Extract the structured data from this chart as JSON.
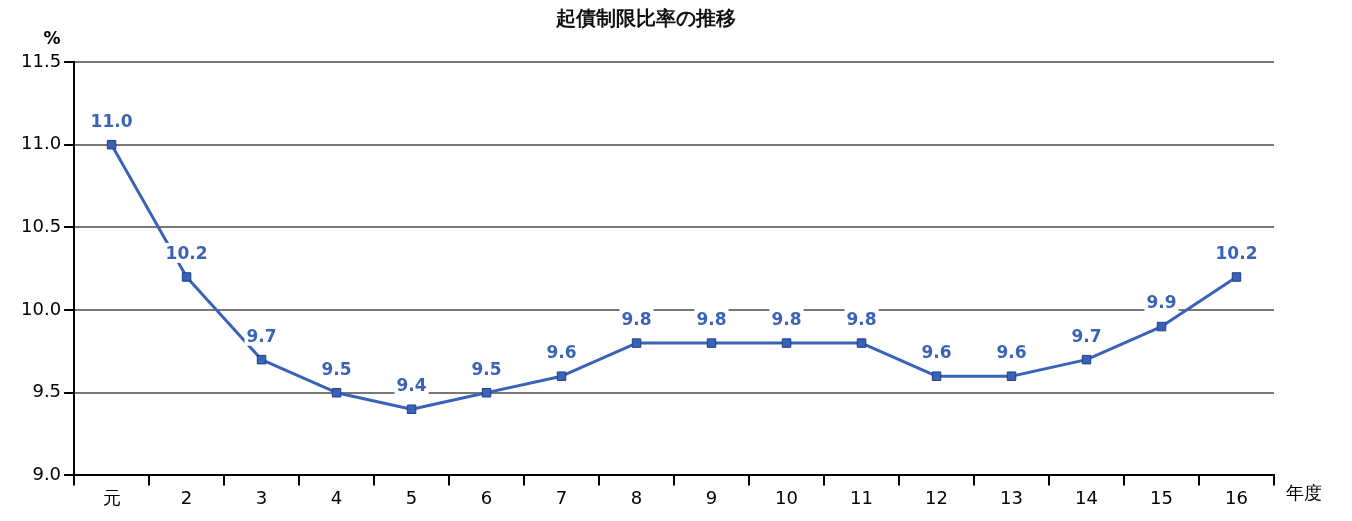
{
  "chart_data": {
    "type": "line",
    "title": "起債制限比率の推移",
    "xlabel": "年度",
    "ylabel": "%",
    "categories": [
      "元",
      "2",
      "3",
      "4",
      "5",
      "6",
      "7",
      "8",
      "9",
      "10",
      "11",
      "12",
      "13",
      "14",
      "15",
      "16"
    ],
    "series": [
      {
        "color": "#3a63b8",
        "values": [
          11.0,
          10.2,
          9.7,
          9.5,
          9.4,
          9.5,
          9.6,
          9.8,
          9.8,
          9.8,
          9.8,
          9.6,
          9.6,
          9.7,
          9.9,
          10.2
        ],
        "value_labels": [
          "11.0",
          "10.2",
          "9.7",
          "9.5",
          "9.4",
          "9.5",
          "9.6",
          "9.8",
          "9.8",
          "9.8",
          "9.8",
          "9.6",
          "9.6",
          "9.7",
          "9.9",
          "10.2"
        ]
      }
    ],
    "ylim": [
      9.0,
      11.5
    ],
    "yticks": [
      {
        "value": 9.0,
        "label": "9.0"
      },
      {
        "value": 9.5,
        "label": "9.5"
      },
      {
        "value": 10.0,
        "label": "10.0"
      },
      {
        "value": 10.5,
        "label": "10.5"
      },
      {
        "value": 11.0,
        "label": "11.0"
      },
      {
        "value": 11.5,
        "label": "11.5"
      }
    ],
    "grid": "y",
    "marker": "square",
    "line_style": "solid",
    "legend": false
  }
}
